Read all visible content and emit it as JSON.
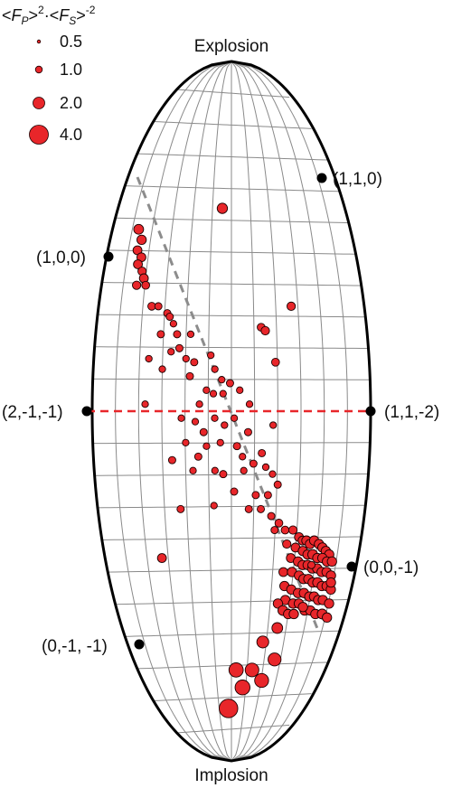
{
  "chart_data": {
    "type": "scatter",
    "title": "",
    "legend": {
      "title": "<F_P>^2 · <F_S>^-2",
      "placement": "top-left",
      "entries": [
        {
          "label": "0.5",
          "value": 0.5
        },
        {
          "label": "1.0",
          "value": 1.0
        },
        {
          "label": "2.0",
          "value": 2.0
        },
        {
          "label": "4.0",
          "value": 4.0
        }
      ]
    },
    "annotations": {
      "top": "Explosion",
      "bottom": "Implosion",
      "labels": [
        "(1,1,0)",
        "(1,0,0)",
        "(2,-1,-1)",
        "(1,1,-2)",
        "(0,0,-1)",
        "(0,-1, -1)"
      ]
    },
    "colors": {
      "marker": "#e8262a",
      "marker_edge": "#1a0000",
      "dashed_gray": "#8c8c8c",
      "dashed_red": "#e8262a"
    },
    "grid": true,
    "series": [
      {
        "values": [
          {
            "x": -0.78,
            "y": 0.52,
            "s": 1.1
          },
          {
            "x": -0.74,
            "y": 0.49,
            "s": 1.0
          },
          {
            "x": -0.76,
            "y": 0.46,
            "s": 0.9
          },
          {
            "x": -0.72,
            "y": 0.44,
            "s": 0.9
          },
          {
            "x": -0.74,
            "y": 0.42,
            "s": 0.9
          },
          {
            "x": -0.7,
            "y": 0.4,
            "s": 0.8
          },
          {
            "x": -0.68,
            "y": 0.38,
            "s": 0.9
          },
          {
            "x": -0.73,
            "y": 0.36,
            "s": 0.8
          },
          {
            "x": -0.66,
            "y": 0.36,
            "s": 0.7
          },
          {
            "x": -0.6,
            "y": 0.3,
            "s": 0.7
          },
          {
            "x": -0.55,
            "y": 0.3,
            "s": 0.6
          },
          {
            "x": -0.48,
            "y": 0.28,
            "s": 0.6
          },
          {
            "x": -0.46,
            "y": 0.27,
            "s": 0.6
          },
          {
            "x": -0.43,
            "y": 0.25,
            "s": 0.5
          },
          {
            "x": -0.52,
            "y": 0.22,
            "s": 0.6
          },
          {
            "x": -0.4,
            "y": 0.22,
            "s": 0.6
          },
          {
            "x": -0.3,
            "y": 0.22,
            "s": 0.5
          },
          {
            "x": -0.38,
            "y": 0.18,
            "s": 0.6
          },
          {
            "x": -0.44,
            "y": 0.17,
            "s": 0.5
          },
          {
            "x": -0.6,
            "y": 0.15,
            "s": 0.5
          },
          {
            "x": -0.33,
            "y": 0.15,
            "s": 0.5
          },
          {
            "x": -0.27,
            "y": 0.14,
            "s": 0.6
          },
          {
            "x": -0.15,
            "y": 0.16,
            "s": 0.5
          },
          {
            "x": -0.12,
            "y": 0.12,
            "s": 0.5
          },
          {
            "x": -0.5,
            "y": 0.12,
            "s": 0.5
          },
          {
            "x": -0.3,
            "y": 0.1,
            "s": 0.6
          },
          {
            "x": -0.07,
            "y": 0.09,
            "s": 0.5
          },
          {
            "x": -0.18,
            "y": 0.06,
            "s": 0.5
          },
          {
            "x": -0.13,
            "y": 0.05,
            "s": 0.5
          },
          {
            "x": -0.06,
            "y": 0.05,
            "s": 0.5
          },
          {
            "x": 0.06,
            "y": 0.06,
            "s": 0.5
          },
          {
            "x": -0.01,
            "y": 0.08,
            "s": 0.6
          },
          {
            "x": -0.23,
            "y": 0.02,
            "s": 0.5
          },
          {
            "x": -0.62,
            "y": 0.02,
            "s": 0.5
          },
          {
            "x": 0.13,
            "y": 0.02,
            "s": 0.5
          },
          {
            "x": -0.36,
            "y": -0.02,
            "s": 0.5
          },
          {
            "x": -0.26,
            "y": -0.03,
            "s": 0.5
          },
          {
            "x": -0.2,
            "y": -0.06,
            "s": 0.6
          },
          {
            "x": -0.12,
            "y": -0.02,
            "s": 0.5
          },
          {
            "x": -0.05,
            "y": -0.04,
            "s": 0.5
          },
          {
            "x": 0.02,
            "y": -0.02,
            "s": 0.5
          },
          {
            "x": 0.12,
            "y": -0.06,
            "s": 0.6
          },
          {
            "x": 0.3,
            "y": -0.04,
            "s": 0.5
          },
          {
            "x": -0.33,
            "y": -0.09,
            "s": 0.5
          },
          {
            "x": -0.18,
            "y": -0.1,
            "s": 0.5
          },
          {
            "x": -0.08,
            "y": -0.09,
            "s": 0.5
          },
          {
            "x": 0.04,
            "y": -0.1,
            "s": 0.6
          },
          {
            "x": -0.43,
            "y": -0.14,
            "s": 0.6
          },
          {
            "x": -0.24,
            "y": -0.13,
            "s": 0.6
          },
          {
            "x": 0.08,
            "y": -0.13,
            "s": 0.5
          },
          {
            "x": 0.16,
            "y": -0.15,
            "s": 0.6
          },
          {
            "x": 0.22,
            "y": -0.12,
            "s": 0.6
          },
          {
            "x": -0.28,
            "y": -0.17,
            "s": 0.5
          },
          {
            "x": -0.12,
            "y": -0.17,
            "s": 0.5
          },
          {
            "x": -0.06,
            "y": -0.18,
            "s": 0.6
          },
          {
            "x": 0.09,
            "y": -0.17,
            "s": 0.5
          },
          {
            "x": 0.25,
            "y": -0.16,
            "s": 0.5
          },
          {
            "x": 0.3,
            "y": -0.18,
            "s": 0.5
          },
          {
            "x": 0.02,
            "y": -0.23,
            "s": 0.6
          },
          {
            "x": 0.18,
            "y": -0.24,
            "s": 0.6
          },
          {
            "x": 0.27,
            "y": -0.24,
            "s": 0.6
          },
          {
            "x": 0.34,
            "y": -0.21,
            "s": 0.6
          },
          {
            "x": -0.38,
            "y": -0.28,
            "s": 0.6
          },
          {
            "x": -0.13,
            "y": -0.27,
            "s": 0.5
          },
          {
            "x": 0.13,
            "y": -0.28,
            "s": 0.6
          },
          {
            "x": 0.22,
            "y": -0.28,
            "s": 0.6
          },
          {
            "x": -0.55,
            "y": -0.42,
            "s": 0.9
          },
          {
            "x": -0.08,
            "y": 0.58,
            "s": 1.2
          },
          {
            "x": 0.45,
            "y": 0.3,
            "s": 0.8
          },
          {
            "x": 0.22,
            "y": 0.24,
            "s": 0.7
          },
          {
            "x": 0.25,
            "y": 0.23,
            "s": 0.8
          },
          {
            "x": 0.32,
            "y": 0.14,
            "s": 0.7
          },
          {
            "x": 0.3,
            "y": -0.3,
            "s": 0.6
          },
          {
            "x": 0.36,
            "y": -0.32,
            "s": 0.7
          },
          {
            "x": 0.41,
            "y": -0.34,
            "s": 0.7
          },
          {
            "x": 0.33,
            "y": -0.34,
            "s": 0.6
          },
          {
            "x": 0.47,
            "y": -0.34,
            "s": 0.8
          },
          {
            "x": 0.52,
            "y": -0.36,
            "s": 0.9
          },
          {
            "x": 0.55,
            "y": -0.37,
            "s": 0.9
          },
          {
            "x": 0.58,
            "y": -0.37,
            "s": 1.0
          },
          {
            "x": 0.61,
            "y": -0.38,
            "s": 1.0
          },
          {
            "x": 0.64,
            "y": -0.37,
            "s": 1.0
          },
          {
            "x": 0.68,
            "y": -0.38,
            "s": 1.0
          },
          {
            "x": 0.71,
            "y": -0.39,
            "s": 1.0
          },
          {
            "x": 0.74,
            "y": -0.4,
            "s": 1.0
          },
          {
            "x": 0.77,
            "y": -0.41,
            "s": 1.0
          },
          {
            "x": 0.43,
            "y": -0.38,
            "s": 0.8
          },
          {
            "x": 0.5,
            "y": -0.39,
            "s": 0.9
          },
          {
            "x": 0.56,
            "y": -0.4,
            "s": 1.0
          },
          {
            "x": 0.6,
            "y": -0.41,
            "s": 1.0
          },
          {
            "x": 0.64,
            "y": -0.41,
            "s": 1.1
          },
          {
            "x": 0.68,
            "y": -0.42,
            "s": 1.0
          },
          {
            "x": 0.72,
            "y": -0.42,
            "s": 1.0
          },
          {
            "x": 0.76,
            "y": -0.43,
            "s": 1.0
          },
          {
            "x": 0.8,
            "y": -0.43,
            "s": 1.0
          },
          {
            "x": 0.47,
            "y": -0.42,
            "s": 0.9
          },
          {
            "x": 0.53,
            "y": -0.43,
            "s": 1.0
          },
          {
            "x": 0.57,
            "y": -0.44,
            "s": 1.0
          },
          {
            "x": 0.61,
            "y": -0.44,
            "s": 1.0
          },
          {
            "x": 0.65,
            "y": -0.45,
            "s": 1.0
          },
          {
            "x": 0.69,
            "y": -0.45,
            "s": 1.0
          },
          {
            "x": 0.73,
            "y": -0.46,
            "s": 1.0
          },
          {
            "x": 0.77,
            "y": -0.46,
            "s": 1.0
          },
          {
            "x": 0.81,
            "y": -0.47,
            "s": 1.0
          },
          {
            "x": 0.42,
            "y": -0.46,
            "s": 0.9
          },
          {
            "x": 0.49,
            "y": -0.46,
            "s": 1.0
          },
          {
            "x": 0.55,
            "y": -0.47,
            "s": 1.0
          },
          {
            "x": 0.59,
            "y": -0.48,
            "s": 1.0
          },
          {
            "x": 0.63,
            "y": -0.48,
            "s": 1.0
          },
          {
            "x": 0.67,
            "y": -0.49,
            "s": 1.0
          },
          {
            "x": 0.71,
            "y": -0.49,
            "s": 1.1
          },
          {
            "x": 0.75,
            "y": -0.5,
            "s": 1.0
          },
          {
            "x": 0.79,
            "y": -0.5,
            "s": 1.0
          },
          {
            "x": 0.83,
            "y": -0.51,
            "s": 1.0
          },
          {
            "x": 0.44,
            "y": -0.5,
            "s": 1.0
          },
          {
            "x": 0.5,
            "y": -0.51,
            "s": 1.0
          },
          {
            "x": 0.56,
            "y": -0.52,
            "s": 1.0
          },
          {
            "x": 0.61,
            "y": -0.52,
            "s": 1.0
          },
          {
            "x": 0.66,
            "y": -0.53,
            "s": 1.0
          },
          {
            "x": 0.7,
            "y": -0.53,
            "s": 1.0
          },
          {
            "x": 0.74,
            "y": -0.54,
            "s": 1.0
          },
          {
            "x": 0.78,
            "y": -0.54,
            "s": 1.0
          },
          {
            "x": 0.84,
            "y": -0.55,
            "s": 1.0
          },
          {
            "x": 0.64,
            "y": -0.57,
            "s": 1.0
          },
          {
            "x": 0.69,
            "y": -0.57,
            "s": 1.0
          },
          {
            "x": 0.74,
            "y": -0.58,
            "s": 1.0
          },
          {
            "x": 0.8,
            "y": -0.58,
            "s": 1.1
          },
          {
            "x": 0.85,
            "y": -0.59,
            "s": 1.0
          },
          {
            "x": 0.46,
            "y": -0.54,
            "s": 1.0
          },
          {
            "x": 0.53,
            "y": -0.55,
            "s": 1.0
          },
          {
            "x": 0.58,
            "y": -0.55,
            "s": 1.0
          },
          {
            "x": 0.62,
            "y": -0.56,
            "s": 1.0
          },
          {
            "x": 0.4,
            "y": -0.55,
            "s": 1.0
          },
          {
            "x": 0.45,
            "y": -0.57,
            "s": 1.1
          },
          {
            "x": 0.5,
            "y": -0.58,
            "s": 1.0
          },
          {
            "x": 0.55,
            "y": -0.58,
            "s": 1.0
          },
          {
            "x": 0.64,
            "y": -0.44,
            "s": 0.6
          },
          {
            "x": 0.82,
            "y": -0.49,
            "s": 1.0
          },
          {
            "x": 0.42,
            "y": -0.62,
            "s": 1.3
          },
          {
            "x": 0.3,
            "y": -0.66,
            "s": 1.6
          },
          {
            "x": 0.44,
            "y": -0.71,
            "s": 1.9
          },
          {
            "x": 0.22,
            "y": -0.74,
            "s": 2.1
          },
          {
            "x": 0.05,
            "y": -0.74,
            "s": 2.3
          },
          {
            "x": 0.34,
            "y": -0.77,
            "s": 2.2
          },
          {
            "x": 0.13,
            "y": -0.79,
            "s": 2.5
          },
          {
            "x": -0.04,
            "y": -0.85,
            "s": 3.9
          }
        ]
      }
    ]
  }
}
